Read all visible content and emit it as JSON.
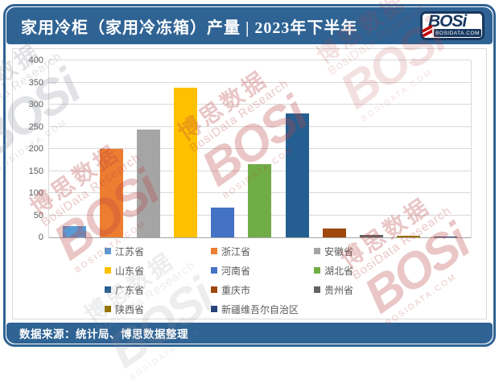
{
  "header": {
    "title": "家用冷柜（家用冷冻箱）产量 | 2023年下半年",
    "logo": {
      "brand": "BOSi",
      "site": "BOSIDATA.COM"
    }
  },
  "footer": {
    "source": "数据来源：统计局、博思数据整理"
  },
  "watermark": {
    "brand": "BOSi",
    "cn": "博思数据",
    "en": "BosiData Research",
    "site": "BOSIDATA.COM"
  },
  "colors": {
    "frame_blue": "#2F6394",
    "logo_navy": "#17375E",
    "logo_red": "#C00000",
    "gridline": "#D9D9D9",
    "axis_text": "#595959",
    "watermark_red": "#BB4444"
  },
  "chart_data": {
    "type": "bar",
    "title": "家用冷柜（家用冷冻箱）产量 | 2023年下半年",
    "categories": [
      "江苏省",
      "浙江省",
      "安徽省",
      "山东省",
      "河南省",
      "湖北省",
      "广东省",
      "重庆市",
      "贵州省",
      "陕西省",
      "新疆维吾尔自治区"
    ],
    "values": [
      25,
      200,
      243,
      338,
      68,
      165,
      280,
      20,
      6,
      3,
      2
    ],
    "colors": [
      "#5B9BD5",
      "#ED7D31",
      "#A5A5A5",
      "#FFC000",
      "#4472C4",
      "#70AD47",
      "#255E91",
      "#9E480E",
      "#636363",
      "#997300",
      "#264478"
    ],
    "xlabel": "",
    "ylabel": "",
    "ylim": [
      0,
      400
    ],
    "yticks": [
      0,
      50,
      100,
      150,
      200,
      250,
      300,
      350,
      400
    ],
    "grid": true,
    "legend_position": "bottom"
  }
}
